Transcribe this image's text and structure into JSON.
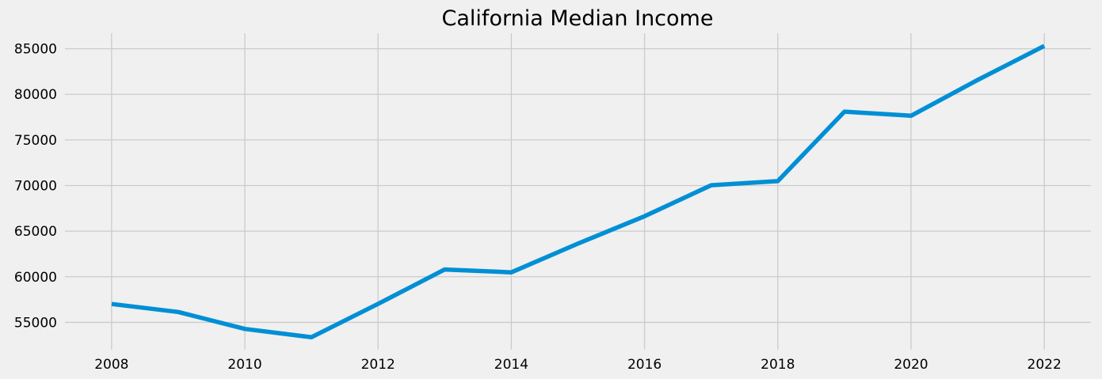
{
  "chart_data": {
    "type": "line",
    "title": "California Median Income",
    "xlabel": "",
    "ylabel": "",
    "x": [
      2008,
      2009,
      2010,
      2011,
      2012,
      2013,
      2014,
      2015,
      2016,
      2017,
      2018,
      2019,
      2020,
      2021,
      2022
    ],
    "series": [
      {
        "values": [
          57014,
          56134,
          54283,
          53367,
          57020,
          60794,
          60487,
          63636,
          66637,
          70038,
          70489,
          78105,
          77655,
          81575,
          85300
        ]
      }
    ],
    "xlim": [
      2007.3,
      2022.7
    ],
    "ylim": [
      52000,
      86700
    ],
    "x_ticks": [
      "2008",
      "2010",
      "2012",
      "2014",
      "2016",
      "2018",
      "2020",
      "2022"
    ],
    "y_ticks": [
      "55000",
      "60000",
      "65000",
      "70000",
      "75000",
      "80000",
      "85000"
    ],
    "grid": true,
    "style": "fivethirtyeight",
    "colors": {
      "background": "#f0f0f0",
      "grid": "#cbcbcb",
      "line": "#008fd5"
    }
  }
}
